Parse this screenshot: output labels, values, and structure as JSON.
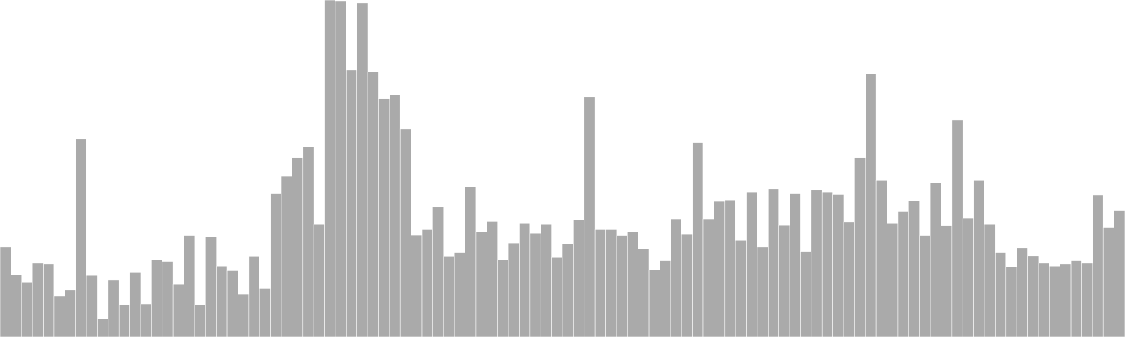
{
  "chart_data": {
    "type": "bar",
    "bar_color": "#aaaaaa",
    "edge_color": "#ffffff",
    "background": "#ffffff",
    "ylim": [
      0,
      100
    ],
    "grid": false,
    "legend": "none",
    "values": [
      26.7,
      18.5,
      16.2,
      21.9,
      21.7,
      12.1,
      14.0,
      58.8,
      18.3,
      5.3,
      16.9,
      9.6,
      19.1,
      9.8,
      22.9,
      22.4,
      15.6,
      30.1,
      9.6,
      29.7,
      21.0,
      19.7,
      12.7,
      23.9,
      14.5,
      42.6,
      47.7,
      53.2,
      56.4,
      33.5,
      100.0,
      99.6,
      79.2,
      99.2,
      78.7,
      70.7,
      71.8,
      61.7,
      30.2,
      32.0,
      38.6,
      23.9,
      25.1,
      44.5,
      31.2,
      34.3,
      22.8,
      27.9,
      33.7,
      30.8,
      33.5,
      23.7,
      27.6,
      34.7,
      71.3,
      32.0,
      32.0,
      30.1,
      31.2,
      26.3,
      19.9,
      22.6,
      35.0,
      30.4,
      57.8,
      35.0,
      40.2,
      40.6,
      28.7,
      42.9,
      26.7,
      44.0,
      33.1,
      42.6,
      25.3,
      43.6,
      42.9,
      42.2,
      34.2,
      53.2,
      78.0,
      46.4,
      33.7,
      37.2,
      40.4,
      30.1,
      45.8,
      33.0,
      64.4,
      35.2,
      46.4,
      33.5,
      25.1,
      20.8,
      26.5,
      24.0,
      21.9,
      21.0,
      21.7,
      22.6,
      21.9,
      42.1,
      32.4,
      37.6
    ]
  }
}
